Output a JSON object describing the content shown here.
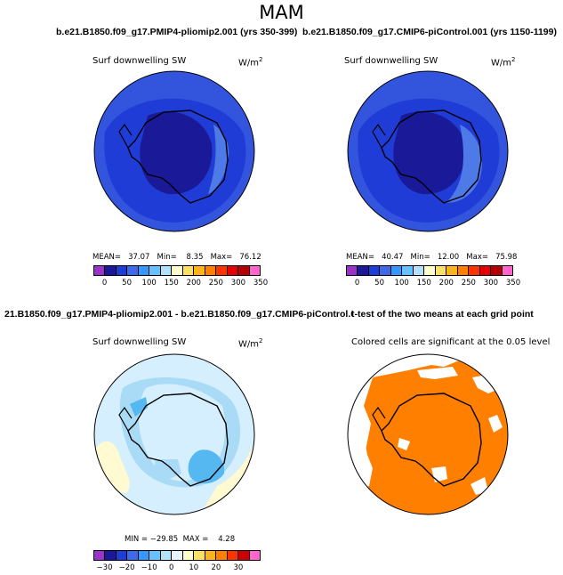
{
  "main_title": "MAM",
  "panels": {
    "top_left": {
      "title": "b.e21.B1850.f09_g17.PMIP4-pliomip2.001 (yrs 350-399)",
      "variable": "Surf downwelling SW",
      "units": "W/m",
      "units_exp": "2",
      "stats": "MEAN=   37.07   Min=    8.35   Max=   76.12"
    },
    "top_right": {
      "title": "b.e21.B1850.f09_g17.CMIP6-piControl.001 (yrs 1150-1199)",
      "variable": "Surf downwelling SW",
      "units": "W/m",
      "units_exp": "2",
      "stats": "MEAN=   40.47   Min=   12.00   Max=   75.98"
    },
    "bottom_left": {
      "title": "21.B1850.f09_g17.PMIP4-pliomip2.001 - b.e21.B1850.f09_g17.CMIP6-piControl.001",
      "variable": "Surf downwelling SW",
      "units": "W/m",
      "units_exp": "2",
      "stats": "MIN = −29.85  MAX =    4.28"
    },
    "bottom_right": {
      "title": "t-test of the two means at each grid point",
      "subtitle": "Colored cells are significant at the 0.05 level"
    }
  },
  "colorbars": {
    "absolute": {
      "colors": [
        "#9933cc",
        "#1a1a99",
        "#1f3dd6",
        "#3d6aeb",
        "#3399ff",
        "#66c2ff",
        "#b3e0ff",
        "#ffffcc",
        "#ffe066",
        "#ffb31a",
        "#ff8000",
        "#ff3300",
        "#e60000",
        "#b30000",
        "#ff66cc"
      ],
      "tick_labels": [
        "0",
        "50",
        "100",
        "150",
        "200",
        "250",
        "300",
        "350"
      ]
    },
    "difference": {
      "colors": [
        "#9933cc",
        "#1a1a99",
        "#1f3dd6",
        "#3d6aeb",
        "#3399ff",
        "#66c2ff",
        "#b3e0ff",
        "#e6f5ff",
        "#ffffcc",
        "#ffe066",
        "#ffb31a",
        "#ff8000",
        "#ff3300",
        "#cc0000",
        "#ff66cc"
      ],
      "tick_labels": [
        "−30",
        "−20",
        "−10",
        "0",
        "10",
        "20",
        "30"
      ]
    }
  },
  "map_colors": {
    "abs_outer": "#3355dd",
    "abs_mid": "#1f3dd6",
    "abs_inner": "#1a1a99",
    "abs_light": "#4d7ae6",
    "diff_base": "#d6efff",
    "diff_mid": "#a9dbf7",
    "diff_deep": "#55b8f0",
    "diff_yellow": "#fffad1",
    "sig_orange": "#ff7f00",
    "coast": "#000000"
  }
}
